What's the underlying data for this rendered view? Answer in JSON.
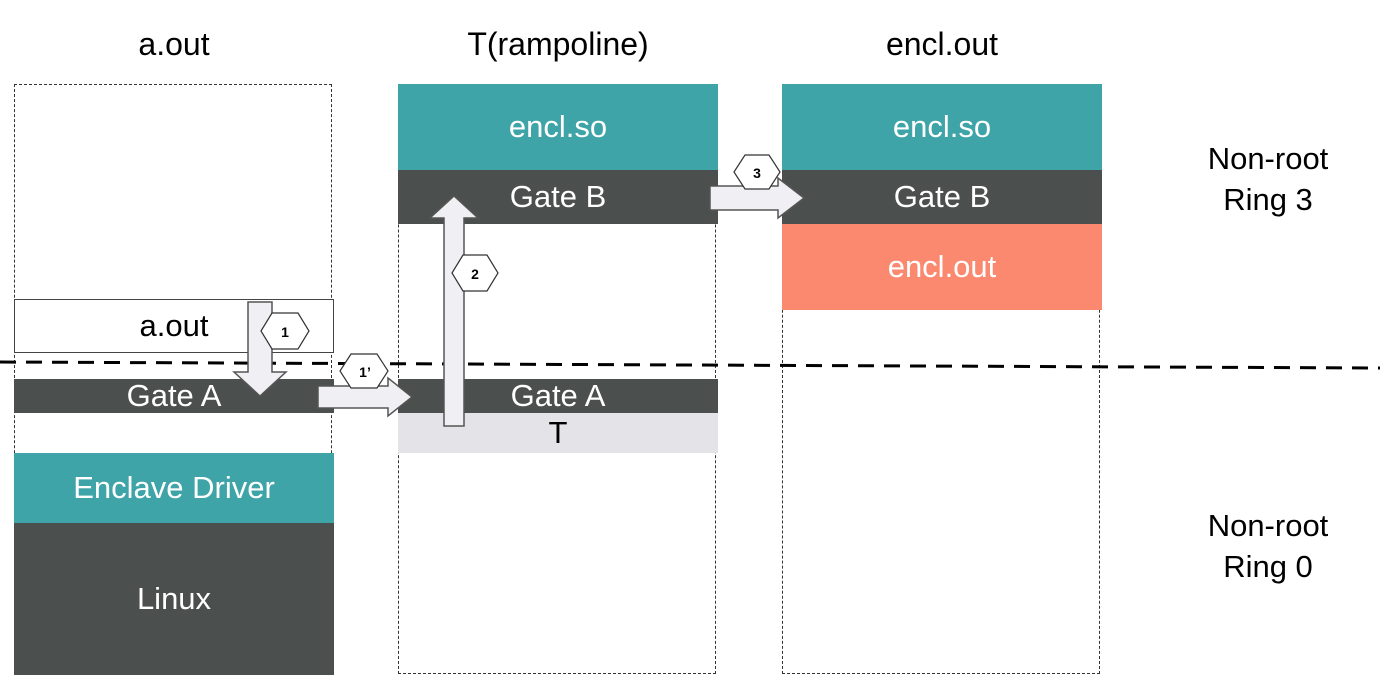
{
  "columns": {
    "aout": {
      "title": "a.out",
      "aout_box": "a.out",
      "gate_a": "Gate A",
      "enclave_driver": "Enclave Driver",
      "linux": "Linux"
    },
    "trampoline": {
      "title": "T(rampoline)",
      "encl_so": "encl.so",
      "gate_b": "Gate B",
      "gate_a": "Gate A",
      "t_box": "T"
    },
    "enclout": {
      "title": "encl.out",
      "encl_so": "encl.so",
      "gate_b": "Gate B",
      "encl_out": "encl.out"
    }
  },
  "rings": {
    "ring3": {
      "line1": "Non-root",
      "line2": "Ring 3"
    },
    "ring0": {
      "line1": "Non-root",
      "line2": "Ring 0"
    }
  },
  "steps": {
    "s1": "1",
    "s1p": "1’",
    "s2": "2",
    "s3": "3"
  },
  "colors": {
    "teal": "#3ea4a8",
    "dark": "#4b4f4e",
    "salmon": "#fa8970",
    "light": "#e3e3e8",
    "arrow_fill": "#f0f0f4"
  }
}
